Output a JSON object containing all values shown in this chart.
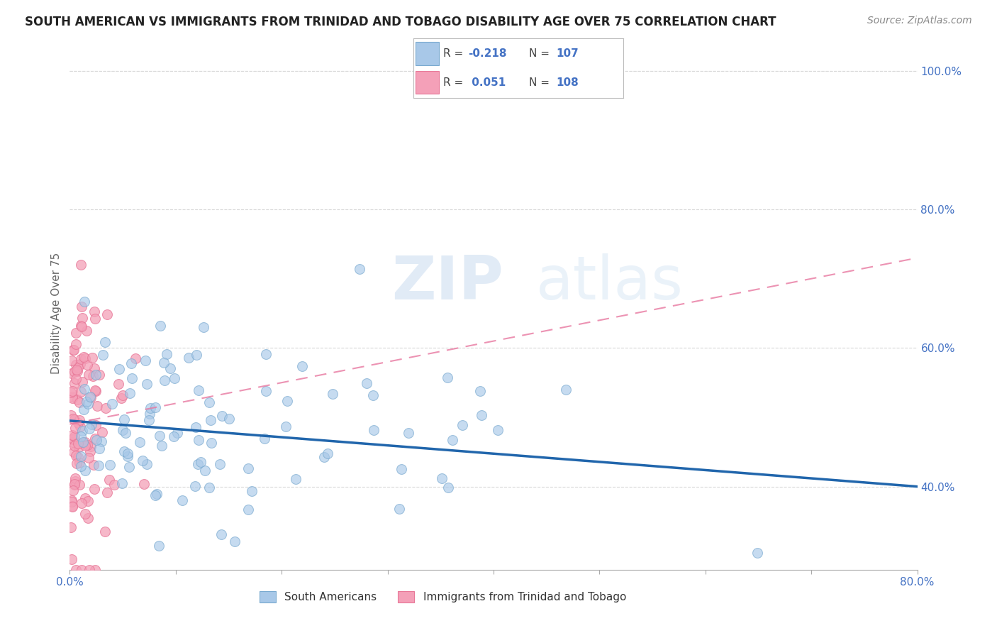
{
  "title": "SOUTH AMERICAN VS IMMIGRANTS FROM TRINIDAD AND TOBAGO DISABILITY AGE OVER 75 CORRELATION CHART",
  "source": "Source: ZipAtlas.com",
  "ylabel": "Disability Age Over 75",
  "legend_label1": "South Americans",
  "legend_label2": "Immigrants from Trinidad and Tobago",
  "r1": -0.218,
  "n1": 107,
  "r2": 0.051,
  "n2": 108,
  "color_blue": "#a8c8e8",
  "color_pink": "#f4a0b8",
  "color_blue_edge": "#7aaad0",
  "color_pink_edge": "#e87898",
  "color_blue_line": "#2166ac",
  "color_pink_line": "#e878a0",
  "xmin": 0.0,
  "xmax": 0.8,
  "ymin": 0.28,
  "ymax": 1.02,
  "ytick_positions": [
    0.4,
    0.6,
    0.8,
    1.0
  ],
  "ytick_top": 1.0,
  "grid_color": "#d8d8d8",
  "watermark": "ZIPatlas",
  "blue_x_trend_start": 0.0,
  "blue_x_trend_end": 0.8,
  "blue_y_trend_start": 0.495,
  "blue_y_trend_end": 0.4,
  "pink_x_trend_start": 0.0,
  "pink_x_trend_end": 0.8,
  "pink_y_trend_start": 0.49,
  "pink_y_trend_end": 0.73,
  "title_fontsize": 12,
  "source_fontsize": 10,
  "tick_label_color": "#4472c4",
  "axis_label_color": "#666666"
}
